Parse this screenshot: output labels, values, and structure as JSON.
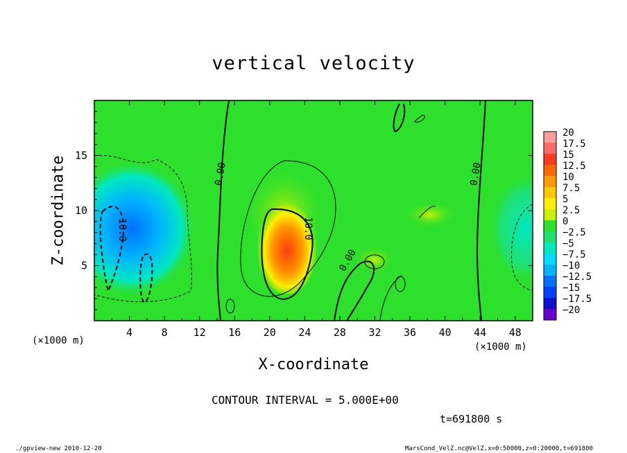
{
  "chart_data": {
    "type": "heatmap",
    "title": "vertical velocity",
    "xlabel": "X-coordinate",
    "ylabel": "Z-coordinate",
    "x_unit": "(×1000 m)",
    "y_unit": "(×1000 m)",
    "xlim": [
      0,
      50
    ],
    "ylim": [
      0,
      20
    ],
    "x_ticks": [
      4,
      8,
      12,
      16,
      20,
      24,
      28,
      32,
      36,
      40,
      44,
      48
    ],
    "y_ticks": [
      5,
      10,
      15
    ],
    "colorbar": {
      "levels": [
        20,
        17.5,
        15,
        12.5,
        10,
        7.5,
        5,
        2.5,
        0,
        -2.5,
        -5,
        -7.5,
        -10,
        -12.5,
        -15,
        -17.5,
        -20
      ],
      "labels": [
        "20",
        "17.5",
        "15",
        "12.5",
        "10",
        "7.5",
        "5",
        "2.5",
        "0",
        "−2.5",
        "−5",
        "−7.5",
        "−10",
        "−12.5",
        "−15",
        "−17.5",
        "−20"
      ],
      "colors": [
        "#ff9c9c",
        "#ff6a6a",
        "#ff3c1e",
        "#ff6a00",
        "#ff9a00",
        "#ffc800",
        "#ffee00",
        "#c8f000",
        "#2ce02c",
        "#20e070",
        "#00e8c0",
        "#00dcff",
        "#00b4ff",
        "#0070ff",
        "#0040ff",
        "#1010d0",
        "#6a00d0"
      ]
    },
    "features": [
      {
        "kind": "updraft",
        "center": [
          22,
          7
        ],
        "peak": 15
      },
      {
        "kind": "downdraft",
        "center": [
          2,
          8
        ],
        "peak": -12.5
      },
      {
        "kind": "downdraft",
        "center": [
          49,
          8
        ],
        "peak": -7.5
      }
    ],
    "contour_labels": [
      "0.00",
      "0.00",
      "0.00",
      "10.0",
      "10.0"
    ],
    "contour_interval_text": "CONTOUR INTERVAL = 5.000E+00",
    "time_text": "t=691800 s"
  },
  "footer": {
    "left": "./gpview-new  2010-12-20",
    "right": "MarsCond_VelZ.nc@VelZ,x=0:50000,z=0:20000,t=691800"
  }
}
